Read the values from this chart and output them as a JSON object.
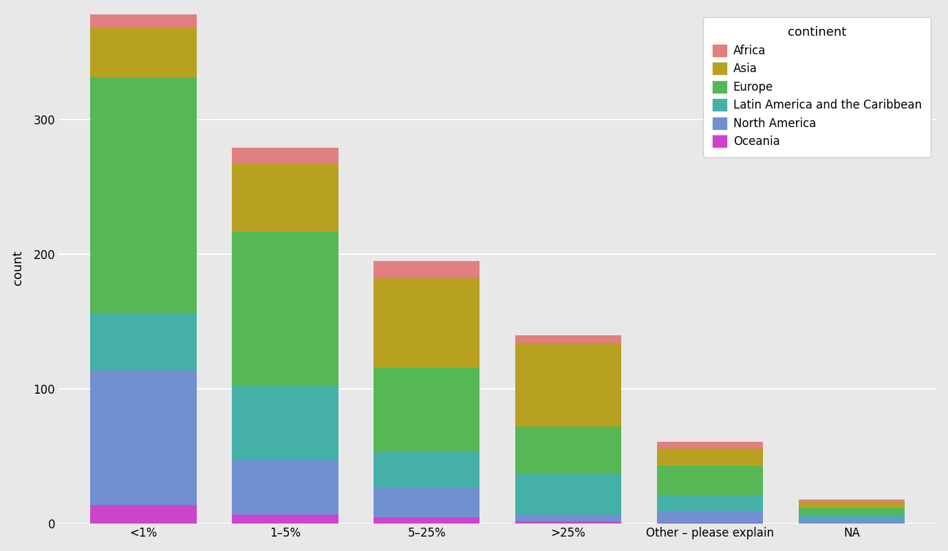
{
  "categories": [
    "<1%",
    "1–5%",
    "5–25%",
    ">25%",
    "Other – please explain",
    "NA"
  ],
  "continents": [
    "Oceania",
    "North America",
    "Latin America and the Caribbean",
    "Europe",
    "Asia",
    "Africa"
  ],
  "colors": {
    "Africa": "#E08080",
    "Asia": "#B8A020",
    "Europe": "#55B855",
    "Latin America and the Caribbean": "#45B0A8",
    "North America": "#7090D0",
    "Oceania": "#CC44CC"
  },
  "data": {
    "Oceania": [
      14,
      7,
      5,
      2,
      1,
      0
    ],
    "North America": [
      100,
      40,
      22,
      5,
      8,
      4
    ],
    "Latin America and the Caribbean": [
      42,
      55,
      26,
      30,
      12,
      3
    ],
    "Europe": [
      175,
      115,
      63,
      35,
      22,
      5
    ],
    "Asia": [
      37,
      50,
      66,
      62,
      13,
      4
    ],
    "Africa": [
      10,
      12,
      13,
      6,
      5,
      2
    ]
  },
  "ylabel": "count",
  "ylim": [
    0,
    380
  ],
  "yticks": [
    0,
    100,
    200,
    300
  ],
  "background_color": "#E8E8E8",
  "panel_background": "#E8E8E8",
  "legend_title": "continent",
  "legend_order": [
    "Africa",
    "Asia",
    "Europe",
    "Latin America and the Caribbean",
    "North America",
    "Oceania"
  ]
}
